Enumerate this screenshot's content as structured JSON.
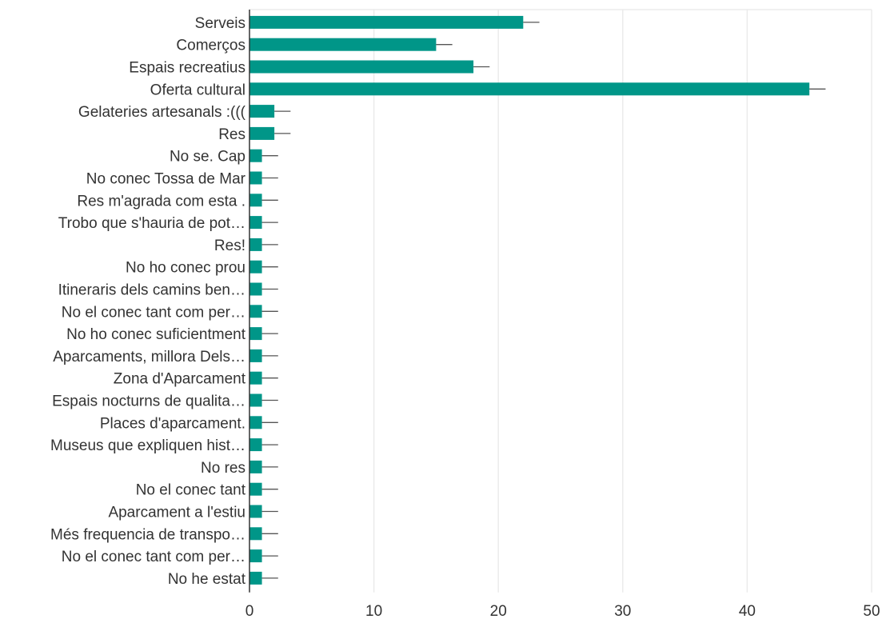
{
  "chart_data": {
    "type": "bar",
    "orientation": "horizontal",
    "categories": [
      "Serveis",
      "Comerços",
      "Espais recreatius",
      "Oferta cultural",
      "Gelateries artesanals :(((",
      "Res",
      "No se. Cap",
      "No conec Tossa de Mar",
      "Res m'agrada com esta .",
      "Trobo que s'hauria de pot…",
      "Res!",
      "No ho conec prou",
      "Itineraris dels camins ben…",
      "No el conec tant com per…",
      "No ho conec suficientment",
      "Aparcaments, millora Dels…",
      "Zona d'Aparcament",
      "Espais nocturns de qualita…",
      "Places d'aparcament.",
      "Museus que expliquen hist…",
      "No res",
      "No el conec tant",
      "Aparcament a l'estiu",
      "Més frequencia de transpo…",
      "No el conec tant com per…",
      "No he estat"
    ],
    "values": [
      22,
      15,
      18,
      45,
      2,
      2,
      1,
      1,
      1,
      1,
      1,
      1,
      1,
      1,
      1,
      1,
      1,
      1,
      1,
      1,
      1,
      1,
      1,
      1,
      1,
      1
    ],
    "error_upper": [
      23.3,
      16.3,
      19.3,
      46.3,
      3.3,
      3.3,
      2.3,
      2.3,
      2.3,
      2.3,
      2.3,
      2.3,
      2.3,
      2.3,
      2.3,
      2.3,
      2.3,
      2.3,
      2.3,
      2.3,
      2.3,
      2.3,
      2.3,
      2.3,
      2.3,
      2.3
    ],
    "xlim": [
      0,
      50
    ],
    "xticks": [
      0,
      10,
      20,
      30,
      40,
      50
    ],
    "grid": "vertical",
    "legend": "none",
    "title": "",
    "xlabel": "",
    "ylabel": "",
    "colors": {
      "bar": "#009688",
      "grid": "#ebebeb",
      "axis": "#333333",
      "errorbar": "#555555"
    }
  }
}
